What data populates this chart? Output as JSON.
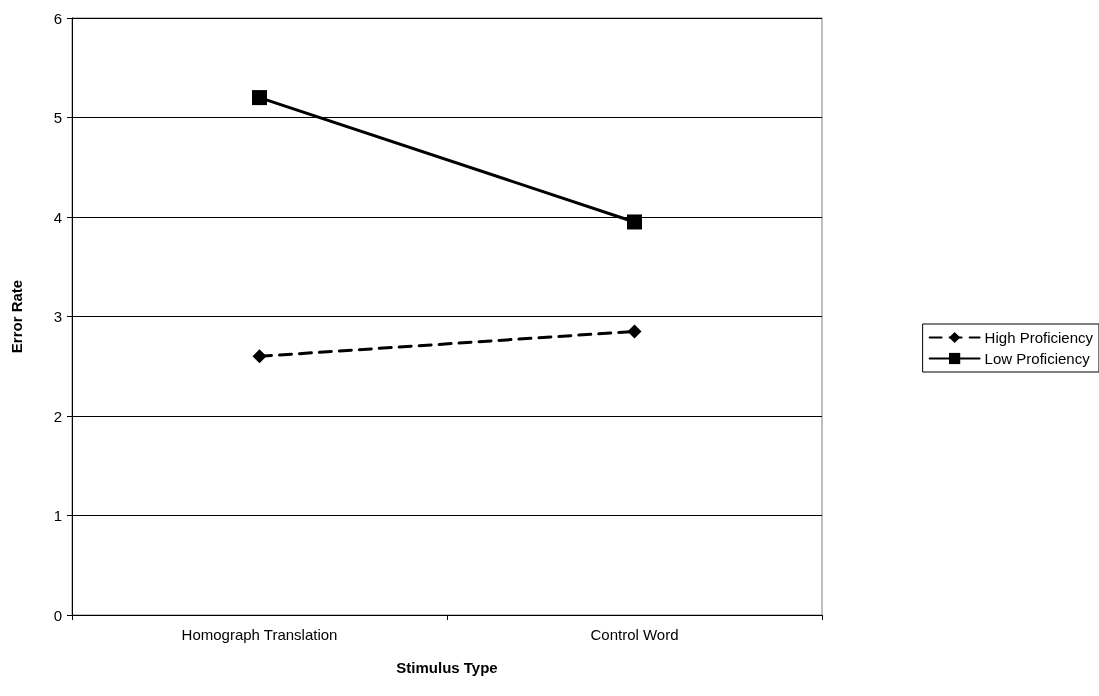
{
  "chart_data": {
    "type": "line",
    "xlabel": "Stimulus Type",
    "ylabel": "Error Rate",
    "categories": [
      "Homograph Translation",
      "Control Word"
    ],
    "series": [
      {
        "name": "High Proficiency",
        "color": "#000000",
        "values": [
          2.6,
          2.85
        ],
        "marker": "diamond",
        "line_style": "dashed"
      },
      {
        "name": "Low Proficiency",
        "color": "#000000",
        "values": [
          5.2,
          3.95
        ],
        "marker": "square",
        "line_style": "solid"
      }
    ],
    "ylim": [
      0,
      6
    ],
    "yticks": [
      0,
      1,
      2,
      3,
      4,
      5,
      6
    ],
    "grid": "y",
    "legend": "right"
  }
}
